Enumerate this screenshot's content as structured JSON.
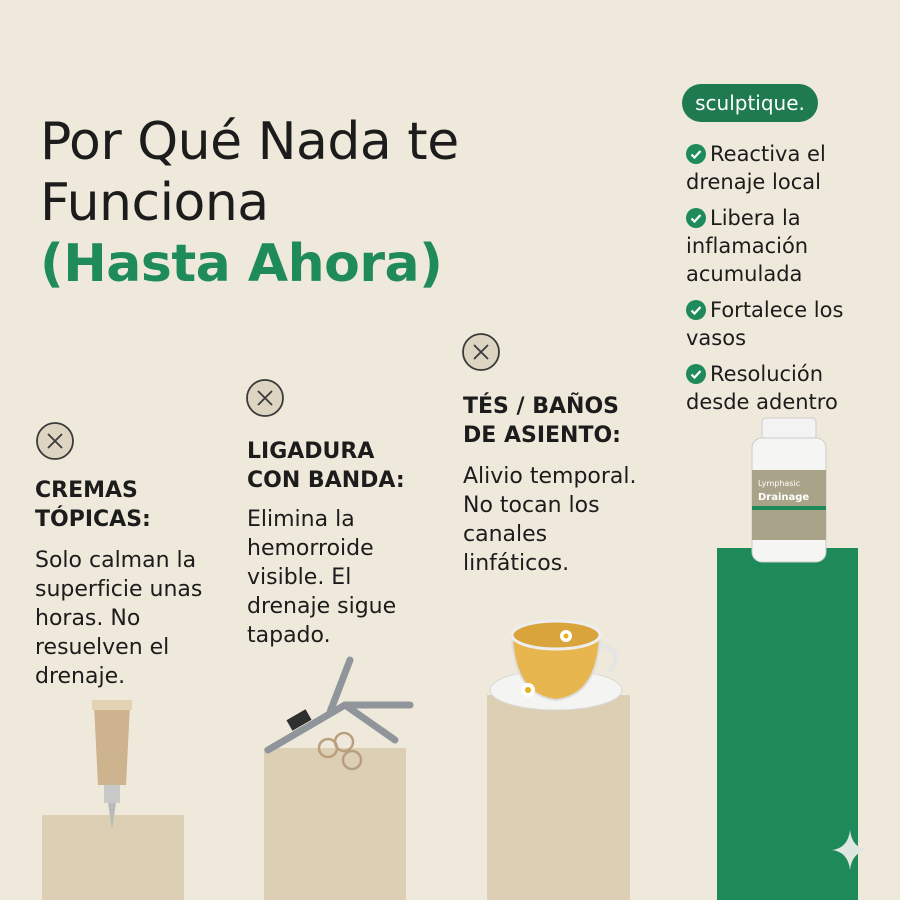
{
  "header": {
    "title_lines": [
      "Por Qué Nada te",
      "Funciona"
    ],
    "highlight": "(Hasta Ahora)"
  },
  "brand": "sculptique.",
  "benefits": [
    "Reactiva el drenaje local",
    "Libera la inflamación acumulada",
    "Fortalece los vasos",
    "Resolución desde adentro"
  ],
  "product": {
    "line1": "Lymphasic",
    "line2": "Drainage"
  },
  "options": [
    {
      "heading": "CREMAS TÓPICAS:",
      "body": "Solo calman la superficie unas horas. No resuelven el drenaje."
    },
    {
      "heading": "LIGADURA CON BANDA:",
      "body": "Elimina la hemorroide visible. El drenaje sigue tapado."
    },
    {
      "heading": "TÉS / BAÑOS DE ASIENTO:",
      "body": "Alivio temporal. No tocan los canales linfáticos."
    }
  ]
}
